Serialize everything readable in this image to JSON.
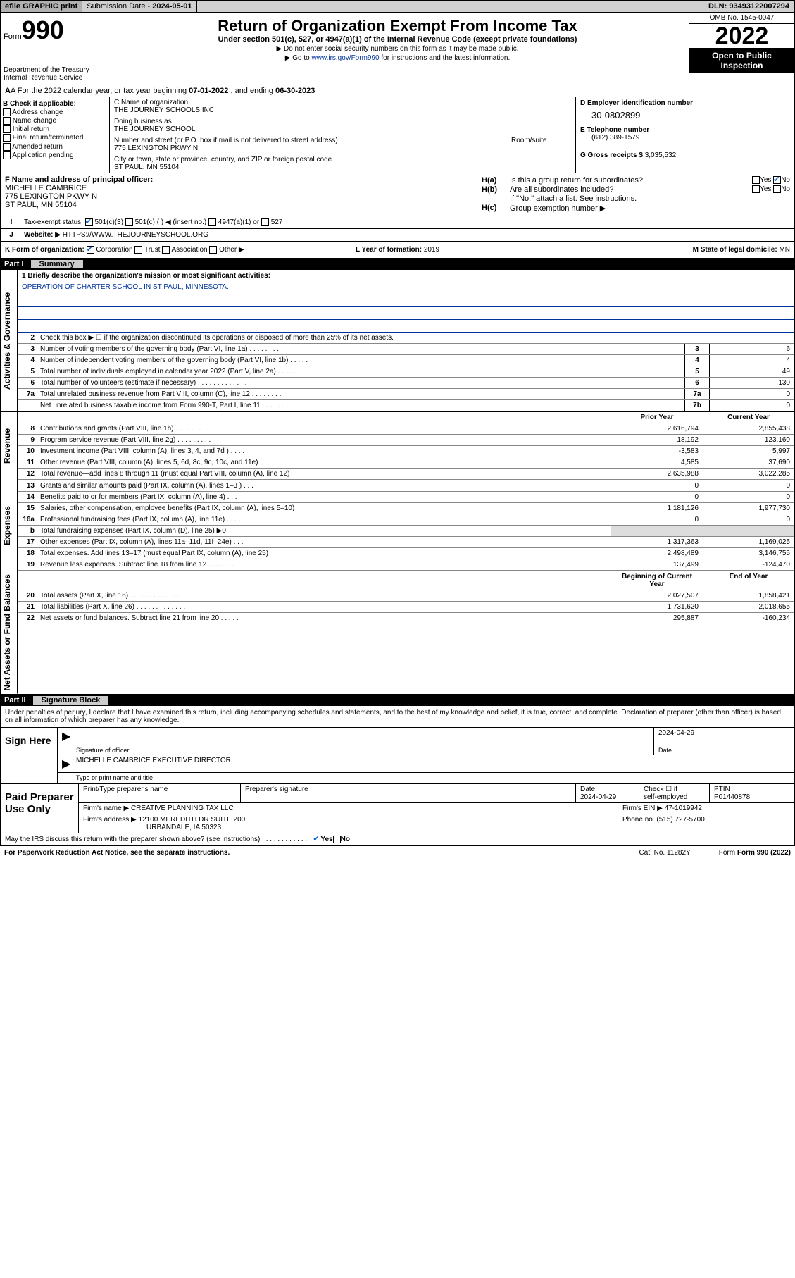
{
  "top": {
    "efile": "efile GRAPHIC print",
    "subdate_lbl": "Submission Date - ",
    "subdate": "2024-05-01",
    "dln_lbl": "DLN: ",
    "dln": "93493122007294"
  },
  "hdr": {
    "form": "Form",
    "f990": "990",
    "dept": "Department of the Treasury\nInternal Revenue Service",
    "title": "Return of Organization Exempt From Income Tax",
    "sub": "Under section 501(c), 527, or 4947(a)(1) of the Internal Revenue Code (except private foundations)",
    "note1": "▶ Do not enter social security numbers on this form as it may be made public.",
    "note2_pre": "▶ Go to ",
    "note2_link": "www.irs.gov/Form990",
    "note2_post": " for instructions and the latest information.",
    "omb": "OMB No. 1545-0047",
    "year": "2022",
    "open": "Open to Public Inspection"
  },
  "a": {
    "pre": "A For the 2022 calendar year, or tax year beginning ",
    "begin": "07-01-2022",
    "mid": " , and ending ",
    "end": "06-30-2023"
  },
  "b": {
    "lbl": "B Check if applicable:",
    "items": [
      "Address change",
      "Name change",
      "Initial return",
      "Final return/terminated",
      "Amended return",
      "Application pending"
    ]
  },
  "c": {
    "name_lbl": "C Name of organization",
    "name": "THE JOURNEY SCHOOLS INC",
    "dba_lbl": "Doing business as",
    "dba": "THE JOURNEY SCHOOL",
    "addr_lbl": "Number and street (or P.O. box if mail is not delivered to street address)",
    "room_lbl": "Room/suite",
    "addr": "775 LEXINGTON PKWY N",
    "city_lbl": "City or town, state or province, country, and ZIP or foreign postal code",
    "city": "ST PAUL, MN  55104"
  },
  "d": {
    "lbl": "D Employer identification number",
    "ein": "30-0802899",
    "tel_lbl": "E Telephone number",
    "tel": "(612) 389-1579",
    "gross_lbl": "G Gross receipts $ ",
    "gross": "3,035,532"
  },
  "f": {
    "lbl": "F Name and address of principal officer:",
    "name": "MICHELLE CAMBRICE",
    "addr1": "775 LEXINGTON PKWY N",
    "addr2": "ST PAUL, MN  55104"
  },
  "h": {
    "a_lbl": "Is this a group return for subordinates?",
    "b_lbl": "Are all subordinates included?",
    "b_note": "If \"No,\" attach a list. See instructions.",
    "c_lbl": "Group exemption number ▶"
  },
  "i": {
    "lbl": "Tax-exempt status:",
    "o1": "501(c)(3)",
    "o2": "501(c) (  ) ◀ (insert no.)",
    "o3": "4947(a)(1) or",
    "o4": "527"
  },
  "j": {
    "lbl": "Website: ▶",
    "url": "HTTPS://WWW.THEJOURNEYSCHOOL.ORG"
  },
  "k": {
    "lbl": "K Form of organization:",
    "o1": "Corporation",
    "o2": "Trust",
    "o3": "Association",
    "o4": "Other ▶",
    "l_lbl": "L Year of formation: ",
    "l_val": "2019",
    "m_lbl": "M State of legal domicile: ",
    "m_val": "MN"
  },
  "part1": {
    "num": "Part I",
    "title": "Summary"
  },
  "mission": {
    "lbl": "1  Briefly describe the organization's mission or most significant activities:",
    "txt": "OPERATION OF CHARTER SCHOOL IN ST PAUL, MINNESOTA."
  },
  "sec": {
    "gov": "Activities & Governance",
    "rev": "Revenue",
    "exp": "Expenses",
    "net": "Net Assets or Fund Balances"
  },
  "rows_gov": [
    {
      "n": "2",
      "t": "Check this box ▶ ☐  if the organization discontinued its operations or disposed of more than 25% of its net assets."
    },
    {
      "n": "3",
      "t": "Number of voting members of the governing body (Part VI, line 1a)   .   .   .   .   .   .   .   .",
      "c": "3",
      "v": "6"
    },
    {
      "n": "4",
      "t": "Number of independent voting members of the governing body (Part VI, line 1b)   .   .   .   .   .",
      "c": "4",
      "v": "4"
    },
    {
      "n": "5",
      "t": "Total number of individuals employed in calendar year 2022 (Part V, line 2a)   .   .   .   .   .   .",
      "c": "5",
      "v": "49"
    },
    {
      "n": "6",
      "t": "Total number of volunteers (estimate if necessary)   .   .   .   .   .   .   .   .   .   .   .   .   .",
      "c": "6",
      "v": "130"
    },
    {
      "n": "7a",
      "t": "Total unrelated business revenue from Part VIII, column (C), line 12   .   .   .   .   .   .   .   .",
      "c": "7a",
      "v": "0"
    },
    {
      "n": "",
      "t": "Net unrelated business taxable income from Form 990-T, Part I, line 11   .   .   .   .   .   .   .",
      "c": "7b",
      "v": "0"
    }
  ],
  "col_hdr": {
    "p": "Prior Year",
    "c": "Current Year",
    "b": "Beginning of Current Year",
    "e": "End of Year"
  },
  "rows_rev": [
    {
      "n": "8",
      "t": "Contributions and grants (Part VIII, line 1h)   .   .   .   .   .   .   .   .   .",
      "p": "2,616,794",
      "c": "2,855,438"
    },
    {
      "n": "9",
      "t": "Program service revenue (Part VIII, line 2g)   .   .   .   .   .   .   .   .   .",
      "p": "18,192",
      "c": "123,160"
    },
    {
      "n": "10",
      "t": "Investment income (Part VIII, column (A), lines 3, 4, and 7d )   .   .   .   .",
      "p": "-3,583",
      "c": "5,997"
    },
    {
      "n": "11",
      "t": "Other revenue (Part VIII, column (A), lines 5, 6d, 8c, 9c, 10c, and 11e)",
      "p": "4,585",
      "c": "37,690"
    },
    {
      "n": "12",
      "t": "Total revenue—add lines 8 through 11 (must equal Part VIII, column (A), line 12)",
      "p": "2,635,988",
      "c": "3,022,285"
    }
  ],
  "rows_exp": [
    {
      "n": "13",
      "t": "Grants and similar amounts paid (Part IX, column (A), lines 1–3 )   .   .   .",
      "p": "0",
      "c": "0"
    },
    {
      "n": "14",
      "t": "Benefits paid to or for members (Part IX, column (A), line 4)   .   .   .",
      "p": "0",
      "c": "0"
    },
    {
      "n": "15",
      "t": "Salaries, other compensation, employee benefits (Part IX, column (A), lines 5–10)",
      "p": "1,181,126",
      "c": "1,977,730"
    },
    {
      "n": "16a",
      "t": "Professional fundraising fees (Part IX, column (A), line 11e)   .   .   .   .",
      "p": "0",
      "c": "0"
    },
    {
      "n": "b",
      "t": "Total fundraising expenses (Part IX, column (D), line 25) ▶0",
      "p": "",
      "c": "",
      "grey": true
    },
    {
      "n": "17",
      "t": "Other expenses (Part IX, column (A), lines 11a–11d, 11f–24e)   .   .   .",
      "p": "1,317,363",
      "c": "1,169,025"
    },
    {
      "n": "18",
      "t": "Total expenses. Add lines 13–17 (must equal Part IX, column (A), line 25)",
      "p": "2,498,489",
      "c": "3,146,755"
    },
    {
      "n": "19",
      "t": "Revenue less expenses. Subtract line 18 from line 12   .   .   .   .   .   .   .",
      "p": "137,499",
      "c": "-124,470"
    }
  ],
  "rows_net": [
    {
      "n": "20",
      "t": "Total assets (Part X, line 16)   .   .   .   .   .   .   .   .   .   .   .   .   .   .",
      "p": "2,027,507",
      "c": "1,858,421"
    },
    {
      "n": "21",
      "t": "Total liabilities (Part X, line 26)   .   .   .   .   .   .   .   .   .   .   .   .   .",
      "p": "1,731,620",
      "c": "2,018,655"
    },
    {
      "n": "22",
      "t": "Net assets or fund balances. Subtract line 21 from line 20   .   .   .   .   .",
      "p": "295,887",
      "c": "-160,234"
    }
  ],
  "part2": {
    "num": "Part II",
    "title": "Signature Block"
  },
  "sig": {
    "note": "Under penalties of perjury, I declare that I have examined this return, including accompanying schedules and statements, and to the best of my knowledge and belief, it is true, correct, and complete. Declaration of preparer (other than officer) is based on all information of which preparer has any knowledge.",
    "here": "Sign Here",
    "off_lbl": "Signature of officer",
    "date": "2024-04-29",
    "date_lbl": "Date",
    "off_name": "MICHELLE CAMBRICE  EXECUTIVE DIRECTOR",
    "off_type": "Type or print name and title"
  },
  "prep": {
    "lbl": "Paid Preparer Use Only",
    "h1": "Print/Type preparer's name",
    "h2": "Preparer's signature",
    "h3": "Date",
    "h3v": "2024-04-29",
    "h4a": "Check ☐ if",
    "h4b": "self-employed",
    "h5": "PTIN",
    "h5v": "P01440878",
    "firm_lbl": "Firm's name ▶",
    "firm": "CREATIVE PLANNING TAX LLC",
    "fein_lbl": "Firm's EIN ▶",
    "fein": "47-1019942",
    "addr_lbl": "Firm's address ▶",
    "addr1": "12100 MEREDITH DR SUITE 200",
    "addr2": "URBANDALE, IA  50323",
    "phone_lbl": "Phone no. ",
    "phone": "(515) 727-5700"
  },
  "may": {
    "t": "May the IRS discuss this return with the preparer shown above? (see instructions)   .   .   .   .   .   .   .   .   .   .   .   .",
    "y": "Yes",
    "n": "No"
  },
  "foot": {
    "l": "For Paperwork Reduction Act Notice, see the separate instructions.",
    "m": "Cat. No. 11282Y",
    "r": "Form 990 (2022)"
  }
}
